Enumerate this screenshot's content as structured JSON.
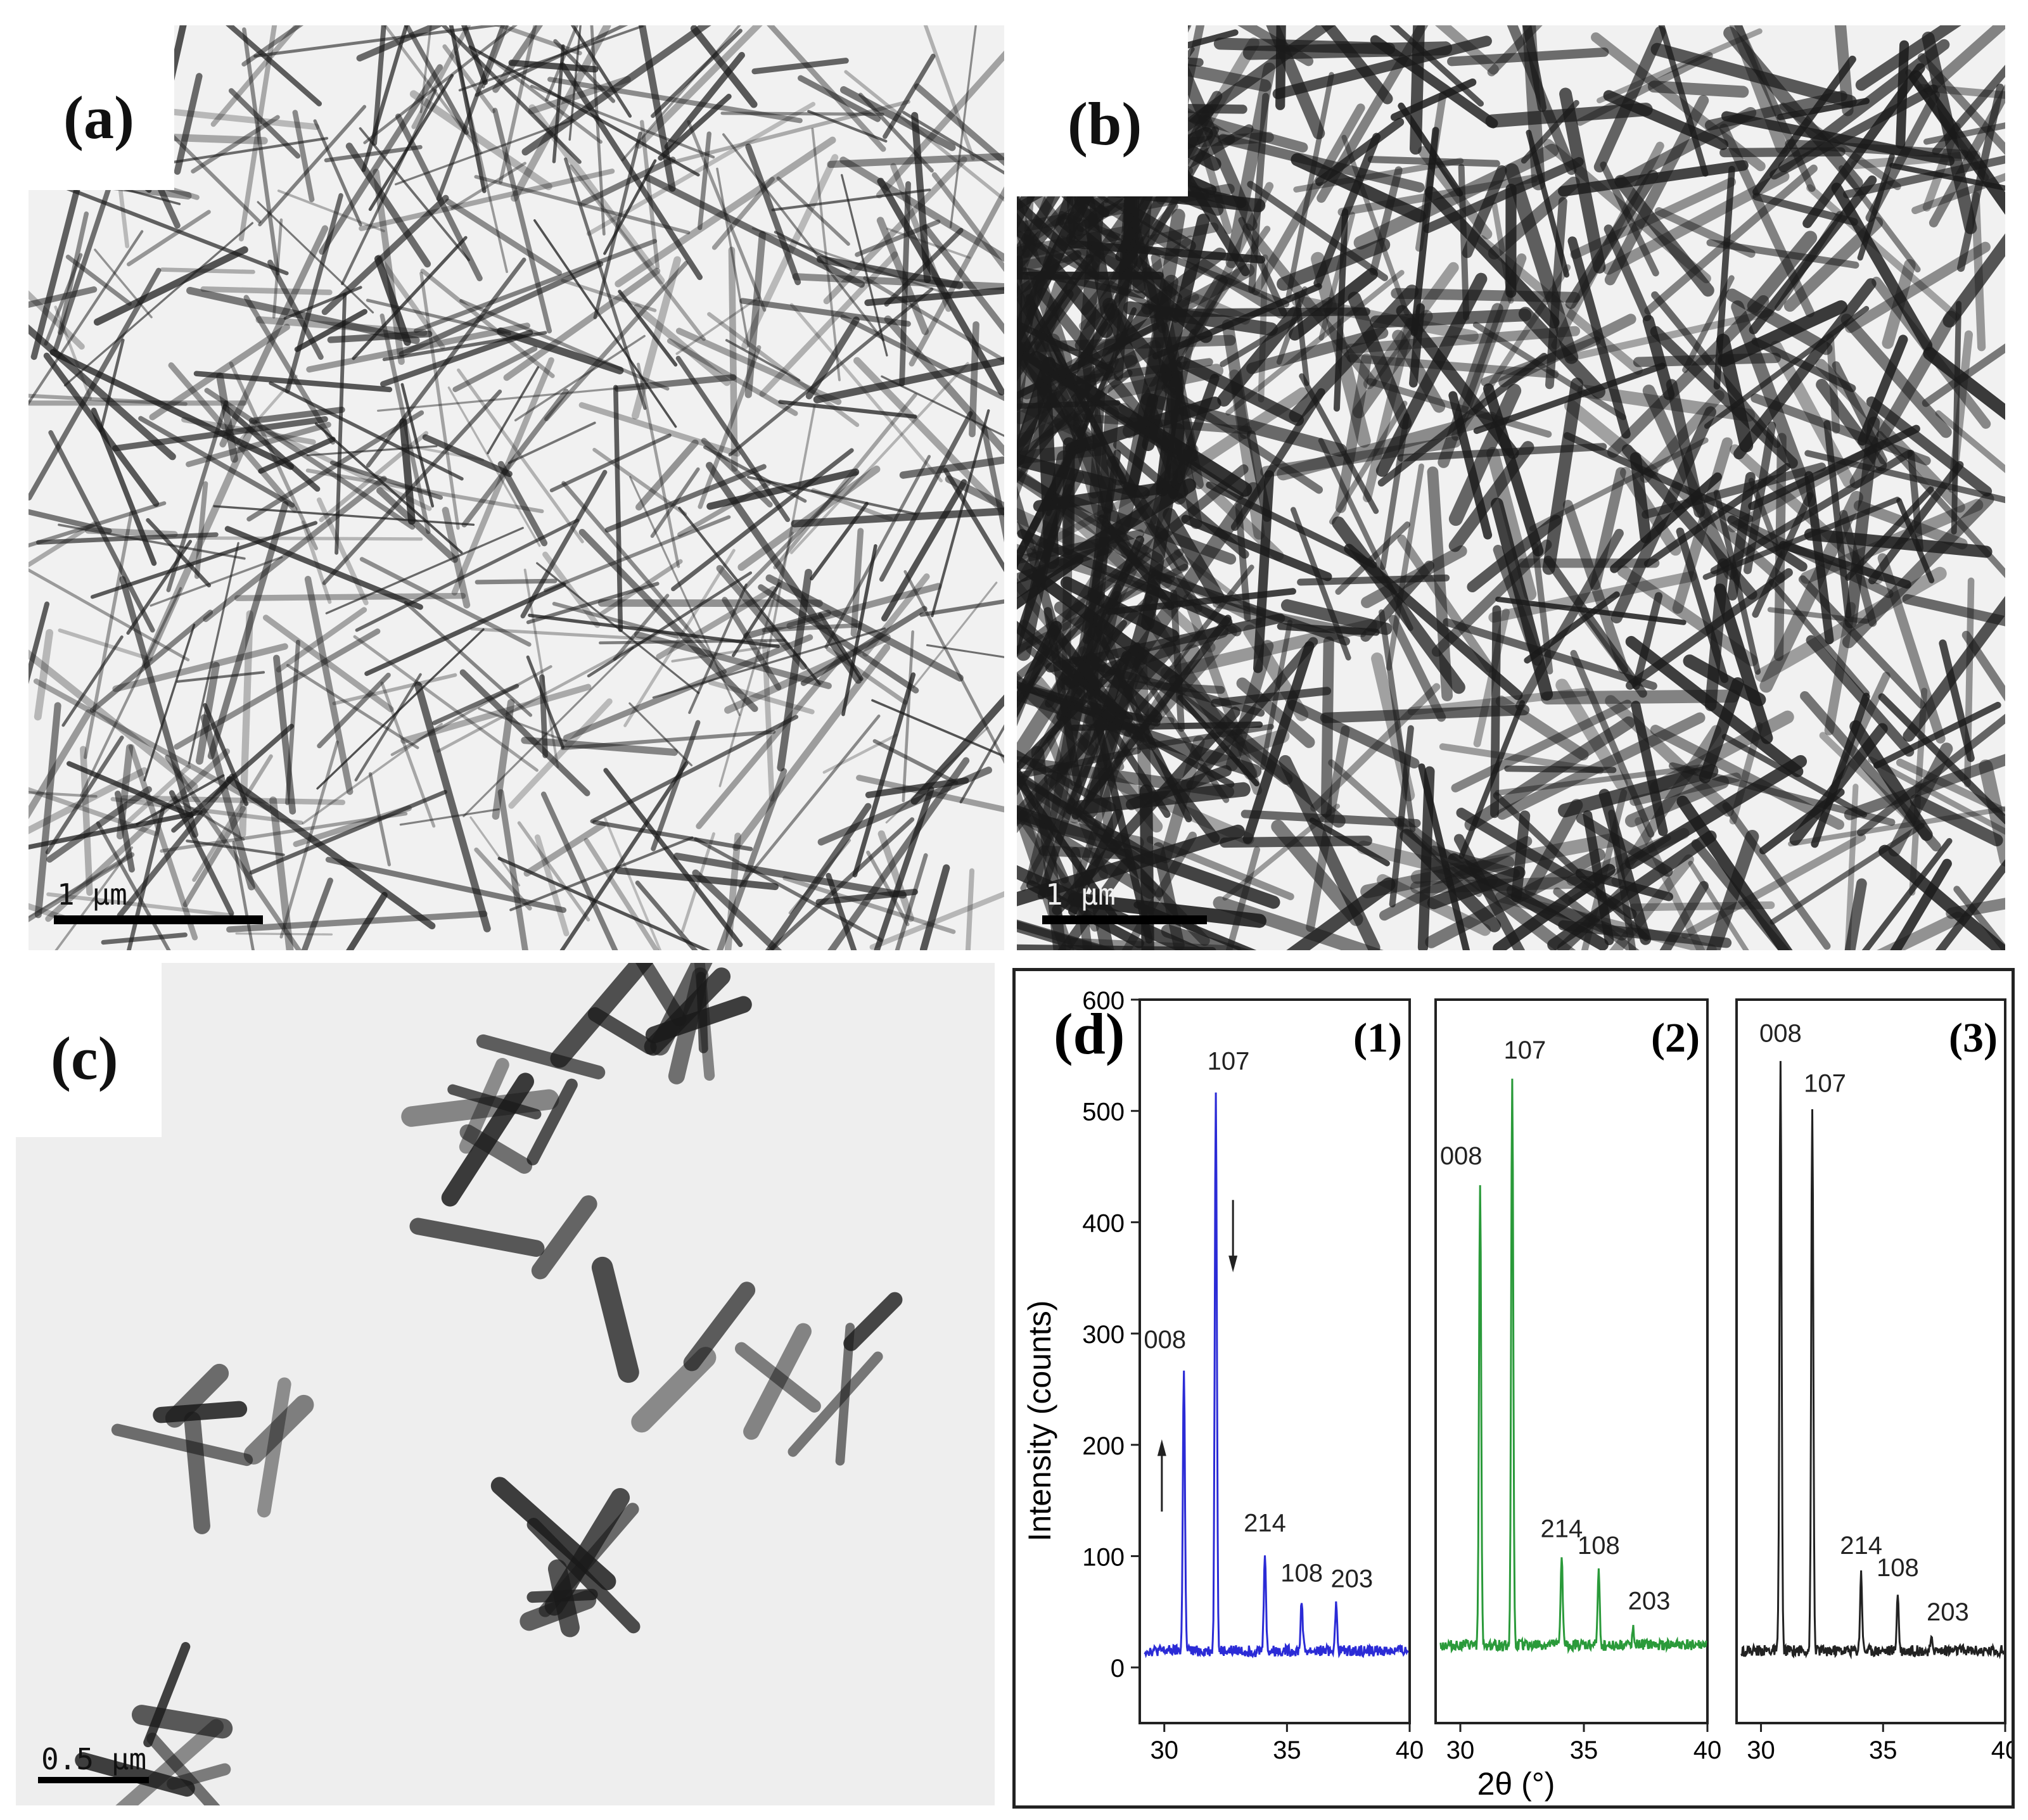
{
  "panels": {
    "a": {
      "label": "(a)",
      "scale_label": "1 μm"
    },
    "b": {
      "label": "(b)",
      "scale_label": "1 μm"
    },
    "c": {
      "label": "(c)",
      "scale_label": "0.5 μm"
    },
    "d": {
      "label": "(d)"
    }
  },
  "chart_data": {
    "type": "line",
    "panel_label": "(d)",
    "xlabel": "2θ (°)",
    "ylabel": "Intensity (counts)",
    "xlim": [
      29,
      40
    ],
    "ylim": [
      -50,
      600
    ],
    "x_ticks": [
      "30",
      "35",
      "40"
    ],
    "y_ticks": [
      "0",
      "100",
      "200",
      "300",
      "400",
      "500",
      "600"
    ],
    "subplots": [
      {
        "label": "(1)",
        "color": "#2b2bd6",
        "baseline": 15,
        "peaks": [
          {
            "hkl": "008",
            "x": 30.8,
            "y": 270
          },
          {
            "hkl": "107",
            "x": 32.1,
            "y": 520
          },
          {
            "hkl": "214",
            "x": 34.1,
            "y": 105
          },
          {
            "hkl": "108",
            "x": 35.6,
            "y": 60
          },
          {
            "hkl": "203",
            "x": 37.0,
            "y": 55
          }
        ],
        "annotations": [
          "up-arrow near 008",
          "down-arrow near 107"
        ]
      },
      {
        "label": "(2)",
        "color": "#2a9a3a",
        "baseline": 20,
        "peaks": [
          {
            "hkl": "008",
            "x": 30.8,
            "y": 435
          },
          {
            "hkl": "107",
            "x": 32.1,
            "y": 530
          },
          {
            "hkl": "214",
            "x": 34.1,
            "y": 100
          },
          {
            "hkl": "108",
            "x": 35.6,
            "y": 85
          },
          {
            "hkl": "203",
            "x": 37.0,
            "y": 35
          }
        ]
      },
      {
        "label": "(3)",
        "color": "#222222",
        "baseline": 15,
        "peaks": [
          {
            "hkl": "008",
            "x": 30.8,
            "y": 545
          },
          {
            "hkl": "107",
            "x": 32.1,
            "y": 500
          },
          {
            "hkl": "214",
            "x": 34.1,
            "y": 85
          },
          {
            "hkl": "108",
            "x": 35.6,
            "y": 65
          },
          {
            "hkl": "203",
            "x": 37.0,
            "y": 25
          }
        ]
      }
    ]
  }
}
